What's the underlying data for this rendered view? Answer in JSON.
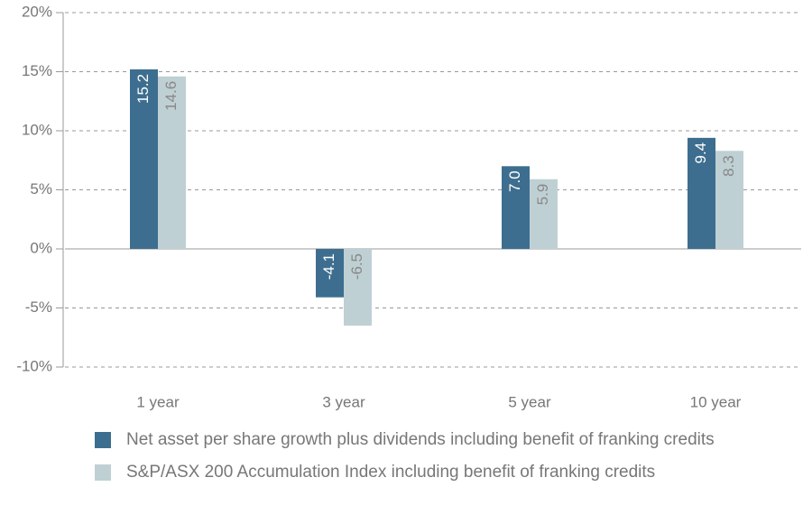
{
  "chart_data": {
    "type": "bar",
    "categories": [
      "1 year",
      "3 year",
      "5 year",
      "10 year"
    ],
    "series": [
      {
        "name": "Net asset per share growth plus dividends including benefit of franking credits",
        "color": "#3d6e8f",
        "values": [
          15.2,
          -4.1,
          7.0,
          9.4
        ],
        "value_labels": [
          "15.2",
          "-4.1",
          "7.0",
          "9.4"
        ]
      },
      {
        "name": "S&P/ASX 200 Accumulation Index including benefit of franking credits",
        "color": "#bfd0d4",
        "values": [
          14.6,
          -6.5,
          5.9,
          8.3
        ],
        "value_labels": [
          "14.6",
          "-6.5",
          "5.9",
          "8.3"
        ]
      }
    ],
    "ylim": [
      -10,
      20
    ],
    "yticks": [
      {
        "value": -10,
        "label": "-10%"
      },
      {
        "value": -5,
        "label": "-5%"
      },
      {
        "value": 0,
        "label": "0%"
      },
      {
        "value": 5,
        "label": "5%"
      },
      {
        "value": 10,
        "label": "10%"
      },
      {
        "value": 15,
        "label": "15%"
      },
      {
        "value": 20,
        "label": "20%"
      }
    ],
    "grid": true
  }
}
